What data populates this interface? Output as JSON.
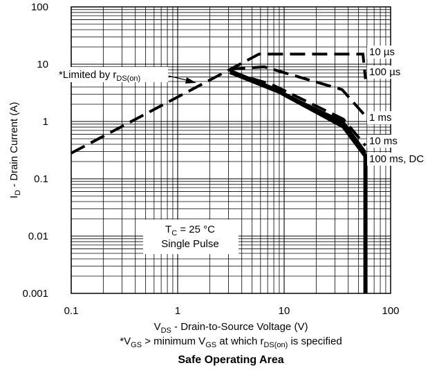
{
  "chart_data": {
    "type": "line",
    "title": "Safe Operating Area",
    "xscale": "log",
    "yscale": "log",
    "xlim": [
      0.1,
      100
    ],
    "ylim": [
      0.001,
      100
    ],
    "grid": true,
    "x_ticks": [
      "0.1",
      "1",
      "10",
      "100"
    ],
    "y_ticks": [
      "0.001",
      "0.01",
      "0.1",
      "1",
      "10",
      "100"
    ],
    "xlabel": {
      "pre": "V",
      "sub": "DS",
      "post": "  -  Drain-to-Source Voltage (V)"
    },
    "ylabel": {
      "pre": "I",
      "sub": "D",
      "post": " - Drain Current (A)"
    },
    "footnote": {
      "t1": "*V",
      "s1": "GS",
      "t2": " > minimum V",
      "s2": "GS",
      "t3": " at which r",
      "s3": "DS(on)",
      "t4": " is specified"
    },
    "limit_annotation": {
      "pre": "*Limited by r",
      "sub": "DS(on)"
    },
    "conditions": {
      "line1": {
        "pre": "T",
        "sub": "C",
        "post": " = 25 °C"
      },
      "line2": "Single Pulse"
    },
    "series": [
      {
        "name": "10 µs",
        "style": "dashed",
        "points": [
          [
            0.1,
            0.28
          ],
          [
            5.8,
            15
          ],
          [
            55,
            15
          ],
          [
            58,
            5.5
          ]
        ]
      },
      {
        "name": "100 µs",
        "style": "dashed",
        "points": [
          [
            3.1,
            8.2
          ],
          [
            6.5,
            9
          ],
          [
            35,
            3.6
          ],
          [
            58,
            1.25
          ]
        ]
      },
      {
        "name": "1 ms",
        "style": "dashed",
        "points": [
          [
            3.1,
            7.2
          ],
          [
            7.5,
            4.5
          ],
          [
            36,
            1.1
          ],
          [
            58,
            0.38
          ]
        ]
      },
      {
        "name": "10 ms",
        "style": "solid",
        "points": [
          [
            3.1,
            7.8
          ],
          [
            8,
            3.8
          ],
          [
            36,
            0.92
          ],
          [
            58,
            0.28
          ]
        ]
      },
      {
        "name": "100 ms, DC",
        "style": "solid-thick",
        "points": [
          [
            3.1,
            7.3
          ],
          [
            9,
            3.3
          ],
          [
            36,
            0.82
          ],
          [
            58,
            0.25
          ],
          [
            58,
            0.001
          ]
        ]
      },
      {
        "name": "limit",
        "style": "solid-thin",
        "points": [
          [
            3.1,
            7.2
          ],
          [
            7,
            4.2
          ],
          [
            36,
            1.0
          ],
          [
            58,
            0.3
          ]
        ]
      }
    ]
  }
}
